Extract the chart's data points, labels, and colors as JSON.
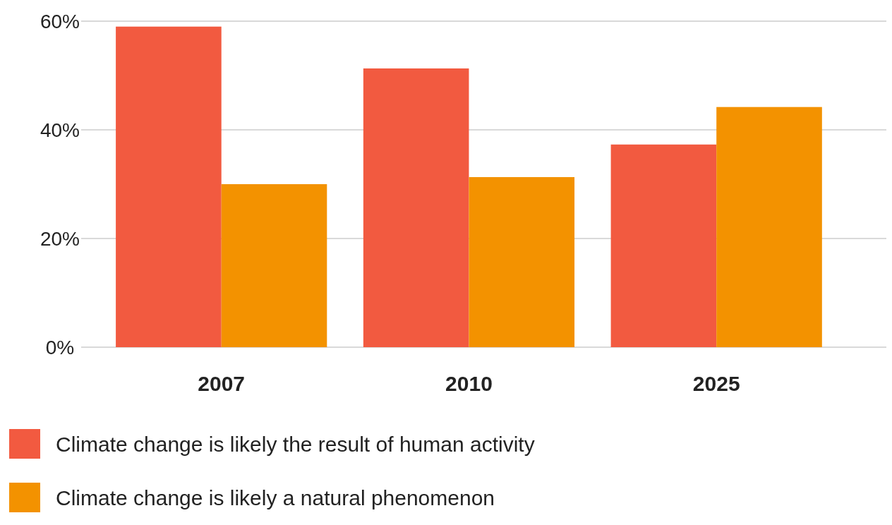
{
  "chart_data": {
    "type": "bar",
    "categories": [
      "2007",
      "2010",
      "2025"
    ],
    "series": [
      {
        "name": "Climate change is likely the result of human activity",
        "color": "#f25a40",
        "values": [
          59.0,
          51.3,
          37.3
        ]
      },
      {
        "name": "Climate change is likely a natural phenomenon",
        "color": "#f39200",
        "values": [
          30.0,
          31.3,
          44.2
        ]
      }
    ],
    "ylim": [
      0,
      60
    ],
    "yticks": [
      {
        "value": 0,
        "label": "0%"
      },
      {
        "value": 20,
        "label": "20%"
      },
      {
        "value": 40,
        "label": "40%"
      },
      {
        "value": 60,
        "label": "60%"
      }
    ],
    "grid": "y",
    "legend": "bottom"
  }
}
